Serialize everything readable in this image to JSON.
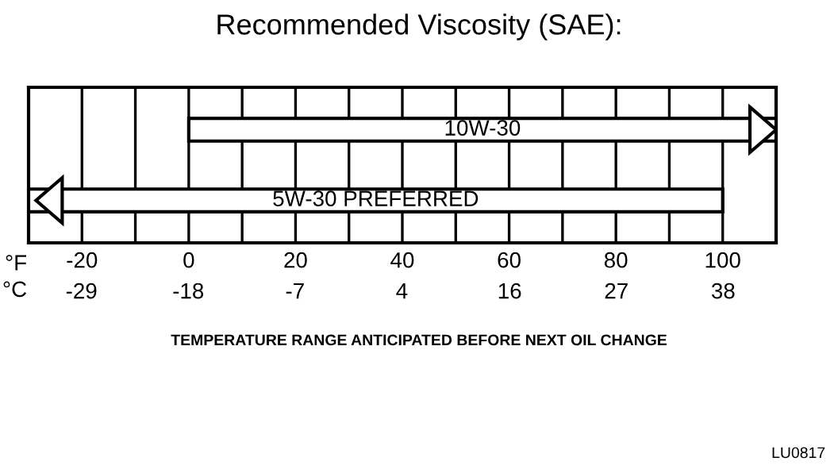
{
  "chart_data": {
    "type": "bar",
    "orientation": "horizontal",
    "title": "Recommended Viscosity (SAE):",
    "categories": [
      "10W-30",
      "5W-30 PREFERRED"
    ],
    "base": [
      0,
      -30
    ],
    "values": [
      110,
      130
    ],
    "color": "#ffffff",
    "xlim": [
      -30,
      110
    ],
    "xticks": [
      -20,
      0,
      20,
      40,
      60,
      80,
      100
    ],
    "xlabel": "°F",
    "x2label": "°C",
    "x2lim": [
      -34.4,
      43.3
    ],
    "x2ticks": [
      {
        "value": -28.9,
        "label": "-29"
      },
      {
        "value": -17.8,
        "label": "-18"
      },
      {
        "value": -6.7,
        "label": "-7"
      },
      {
        "value": 4.4,
        "label": "4"
      },
      {
        "value": 15.6,
        "label": "16"
      },
      {
        "value": 26.7,
        "label": "27"
      },
      {
        "value": 37.8,
        "label": "38"
      }
    ],
    "grid": "x",
    "annotations": [
      "TEMPERATURE RANGE ANTICIPATED BEFORE NEXT OIL CHANGE",
      "LU0817"
    ]
  }
}
